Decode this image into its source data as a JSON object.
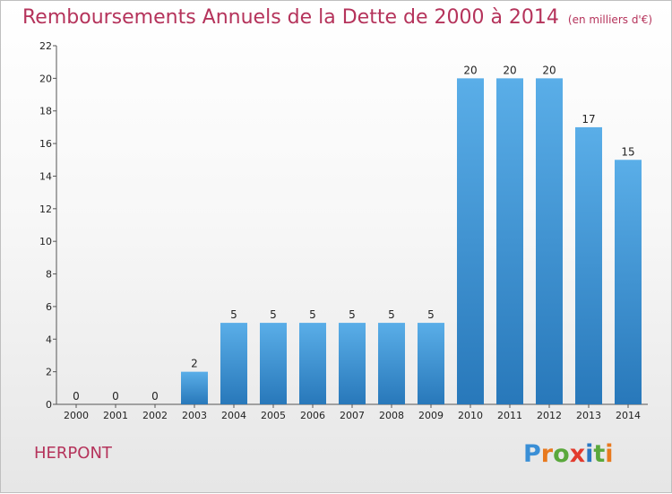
{
  "title": "Remboursements Annuels de la Dette de 2000 à 2014",
  "unit": "(en milliers d'€)",
  "place": "HERPONT",
  "logo": {
    "letters": [
      "P",
      "r",
      "o",
      "x",
      "i",
      "t",
      "i"
    ],
    "colors": [
      "#3a8fd6",
      "#e8791e",
      "#5aa83c",
      "#e23b2e",
      "#2a78c4",
      "#5aa83c",
      "#e8791e"
    ]
  },
  "colors": {
    "title": "#b5335b",
    "bar_top": "#5aaee8",
    "bar_bottom": "#2878ba"
  },
  "chart_data": {
    "type": "bar",
    "categories": [
      "2000",
      "2001",
      "2002",
      "2003",
      "2004",
      "2005",
      "2006",
      "2007",
      "2008",
      "2009",
      "2010",
      "2011",
      "2012",
      "2013",
      "2014"
    ],
    "values": [
      0,
      0,
      0,
      2,
      5,
      5,
      5,
      5,
      5,
      5,
      20,
      20,
      20,
      17,
      15
    ],
    "ylim": [
      0,
      22
    ],
    "yticks": [
      0,
      2,
      4,
      6,
      8,
      10,
      12,
      14,
      16,
      18,
      20,
      22
    ],
    "grid": false,
    "data_labels": true
  }
}
